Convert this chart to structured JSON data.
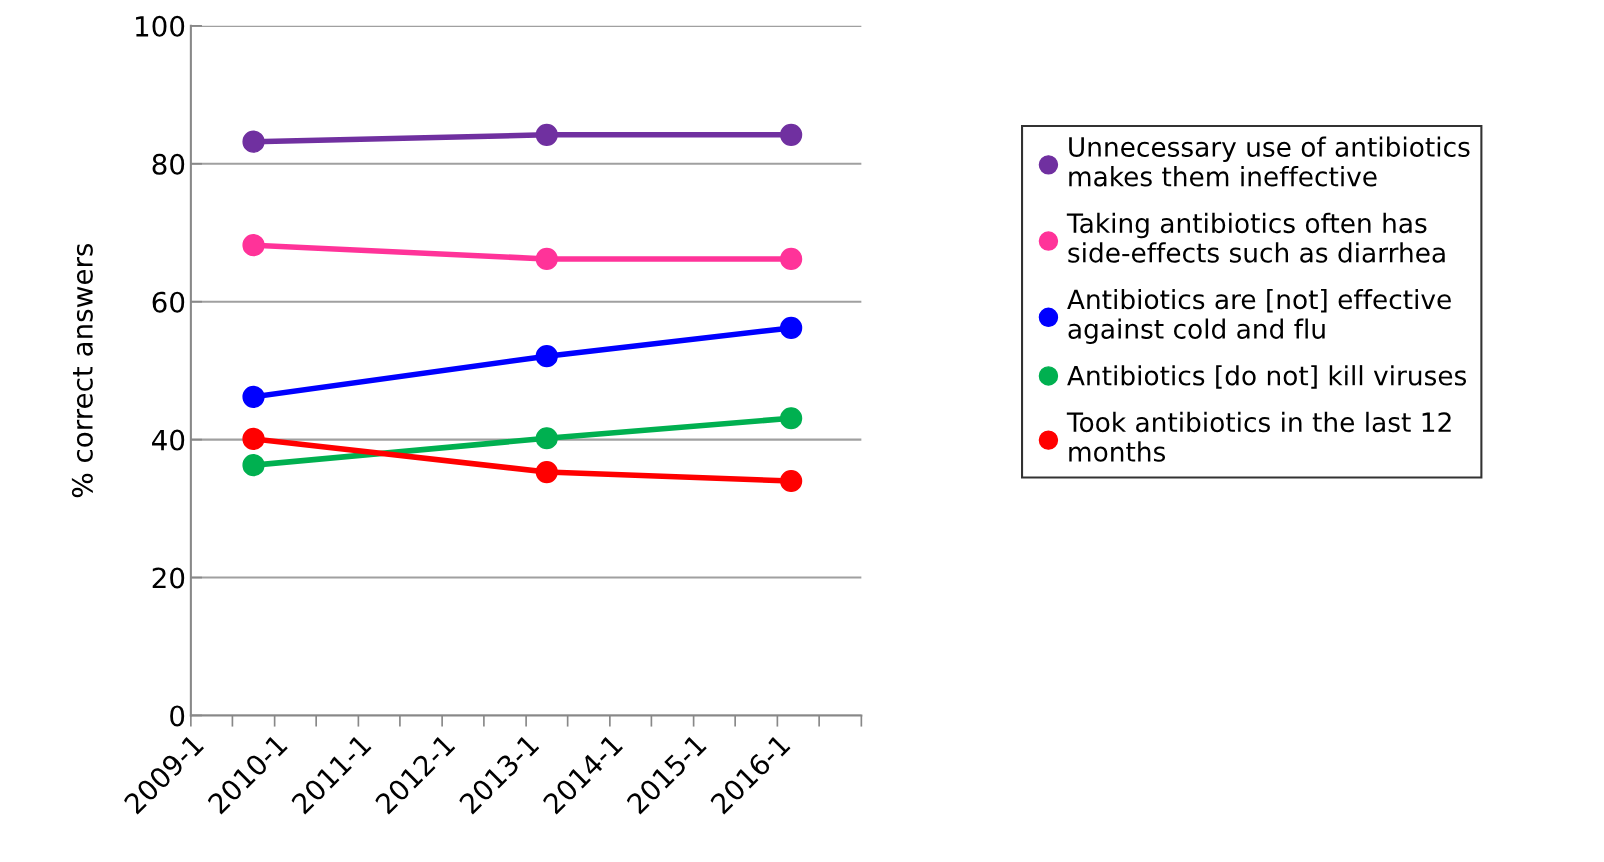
{
  "chart_data": {
    "type": "line",
    "ylabel": "% correct answers",
    "x": [
      "2009-10",
      "2013-04",
      "2016-03"
    ],
    "series": [
      {
        "name": "Unnecessary use of antibiotics\nmakes them ineffective",
        "color": "#7030a0",
        "values": [
          83.2,
          84.2,
          84.2
        ]
      },
      {
        "name": "Taking antibiotics often has\nside-effects such as diarrhea",
        "color": "#ff3399",
        "values": [
          68.2,
          66.2,
          66.2
        ]
      },
      {
        "name": "Antibiotics are [not] effective\nagainst cold and flu",
        "color": "#0000ff",
        "values": [
          46.2,
          52.1,
          56.2
        ]
      },
      {
        "name": "Antibiotics [do not] kill viruses",
        "color": "#00b050",
        "values": [
          36.3,
          40.2,
          43.1
        ]
      },
      {
        "name": "Took antibiotics in the last 12\nmonths",
        "color": "#ff0000",
        "values": [
          40.1,
          35.3,
          34.0
        ]
      }
    ],
    "xlim": [
      "2009-01",
      "2017-01"
    ],
    "xticks": [
      {
        "value": "2009-01",
        "label": "2009-1"
      },
      {
        "value": "2009-07",
        "label": null
      },
      {
        "value": "2010-01",
        "label": "2010-1"
      },
      {
        "value": "2010-07",
        "label": null
      },
      {
        "value": "2011-01",
        "label": "2011-1"
      },
      {
        "value": "2011-07",
        "label": null
      },
      {
        "value": "2012-01",
        "label": "2012-1"
      },
      {
        "value": "2012-07",
        "label": null
      },
      {
        "value": "2013-01",
        "label": "2013-1"
      },
      {
        "value": "2013-07",
        "label": null
      },
      {
        "value": "2014-01",
        "label": "2014-1"
      },
      {
        "value": "2014-07",
        "label": null
      },
      {
        "value": "2015-01",
        "label": "2015-1"
      },
      {
        "value": "2015-07",
        "label": null
      },
      {
        "value": "2016-01",
        "label": "2016-1"
      },
      {
        "value": "2016-07",
        "label": null
      },
      {
        "value": "2017-01",
        "label": null
      }
    ],
    "ylim": [
      0,
      100
    ],
    "yticks": [
      0,
      20,
      40,
      60,
      80,
      100
    ],
    "grid": "y",
    "legend": "right",
    "marker": "circle",
    "line_style": "solid"
  }
}
